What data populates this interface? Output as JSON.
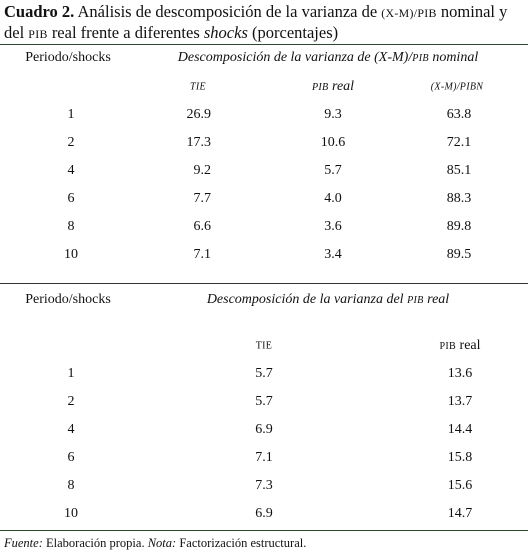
{
  "title": {
    "label": "Cuadro 2.",
    "segments": [
      "Análisis de descomposición de la varianza de",
      "(X-M)/PIB",
      "nominal y del",
      "PIB",
      "real frente a diferentes",
      "shocks",
      "(porcentajes)"
    ]
  },
  "table1": {
    "header": [
      "Periodo/shocks",
      "Descomposición de la varianza de (X-M)/",
      "PIB",
      "nominal"
    ],
    "subheaders": [
      "TIE",
      "PIB",
      "real",
      "(X-M)/PIBN"
    ],
    "rows": [
      [
        "1",
        "26.9",
        "9.3",
        "63.8"
      ],
      [
        "2",
        "17.3",
        "10.6",
        "72.1"
      ],
      [
        "4",
        "9.2",
        "5.7",
        "85.1"
      ],
      [
        "6",
        "7.7",
        "4.0",
        "88.3"
      ],
      [
        "8",
        "6.6",
        "3.6",
        "89.8"
      ],
      [
        "10",
        "7.1",
        "3.4",
        "89.5"
      ]
    ]
  },
  "table2": {
    "header": [
      "Periodo/shocks",
      "Descomposición de la varianza del",
      "PIB",
      "real"
    ],
    "subheaders": [
      "TIE",
      "PIB",
      "real"
    ],
    "rows": [
      [
        "1",
        "5.7",
        "13.6"
      ],
      [
        "2",
        "5.7",
        "13.7"
      ],
      [
        "4",
        "6.9",
        "14.4"
      ],
      [
        "6",
        "7.1",
        "15.8"
      ],
      [
        "8",
        "7.3",
        "15.6"
      ],
      [
        "10",
        "6.9",
        "14.7"
      ]
    ]
  },
  "footnote": [
    "Fuente:",
    "Elaboración propia.",
    "Nota:",
    "Factorización estructural."
  ]
}
